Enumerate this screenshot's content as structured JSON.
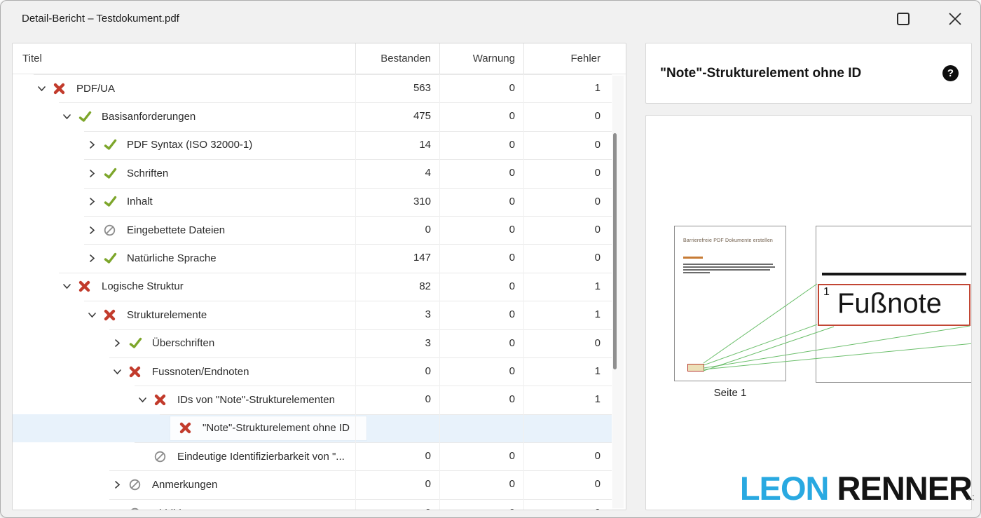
{
  "window": {
    "title": "Detail-Bericht – Testdokument.pdf",
    "controls": {
      "maximize": "maximize",
      "close": "close"
    }
  },
  "table": {
    "headers": {
      "titel": "Titel",
      "bestanden": "Bestanden",
      "warnung": "Warnung",
      "fehler": "Fehler"
    },
    "rows": [
      {
        "level": 1,
        "expander": "expanded",
        "status": "error",
        "title": "PDF/UA",
        "bestanden": "563",
        "warnung": "0",
        "fehler": "1",
        "selected": false
      },
      {
        "level": 2,
        "expander": "expanded",
        "status": "pass",
        "title": "Basisanforderungen",
        "bestanden": "475",
        "warnung": "0",
        "fehler": "0",
        "selected": false
      },
      {
        "level": 3,
        "expander": "collapsed",
        "status": "pass",
        "title": "PDF Syntax (ISO 32000-1)",
        "bestanden": "14",
        "warnung": "0",
        "fehler": "0",
        "selected": false
      },
      {
        "level": 3,
        "expander": "collapsed",
        "status": "pass",
        "title": "Schriften",
        "bestanden": "4",
        "warnung": "0",
        "fehler": "0",
        "selected": false
      },
      {
        "level": 3,
        "expander": "collapsed",
        "status": "pass",
        "title": "Inhalt",
        "bestanden": "310",
        "warnung": "0",
        "fehler": "0",
        "selected": false
      },
      {
        "level": 3,
        "expander": "collapsed",
        "status": "na",
        "title": "Eingebettete Dateien",
        "bestanden": "0",
        "warnung": "0",
        "fehler": "0",
        "selected": false
      },
      {
        "level": 3,
        "expander": "collapsed",
        "status": "pass",
        "title": "Natürliche Sprache",
        "bestanden": "147",
        "warnung": "0",
        "fehler": "0",
        "selected": false
      },
      {
        "level": 2,
        "expander": "expanded",
        "status": "error",
        "title": "Logische Struktur",
        "bestanden": "82",
        "warnung": "0",
        "fehler": "1",
        "selected": false
      },
      {
        "level": 3,
        "expander": "expanded",
        "status": "error",
        "title": "Strukturelemente",
        "bestanden": "3",
        "warnung": "0",
        "fehler": "1",
        "selected": false
      },
      {
        "level": 4,
        "expander": "collapsed",
        "status": "pass",
        "title": "Überschriften",
        "bestanden": "3",
        "warnung": "0",
        "fehler": "0",
        "selected": false
      },
      {
        "level": 4,
        "expander": "expanded",
        "status": "error",
        "title": "Fussnoten/Endnoten",
        "bestanden": "0",
        "warnung": "0",
        "fehler": "1",
        "selected": false
      },
      {
        "level": 5,
        "expander": "expanded",
        "status": "error",
        "title": "IDs von \"Note\"-Strukturelementen",
        "bestanden": "0",
        "warnung": "0",
        "fehler": "1",
        "selected": false
      },
      {
        "level": 6,
        "expander": "none",
        "status": "error",
        "title": "\"Note\"-Strukturelement ohne ID",
        "bestanden": "",
        "warnung": "",
        "fehler": "",
        "selected": true
      },
      {
        "level": 5,
        "expander": "none",
        "status": "na",
        "title": "Eindeutige Identifizierbarkeit von \"...",
        "bestanden": "0",
        "warnung": "0",
        "fehler": "0",
        "selected": false
      },
      {
        "level": 4,
        "expander": "collapsed",
        "status": "na",
        "title": "Anmerkungen",
        "bestanden": "0",
        "warnung": "0",
        "fehler": "0",
        "selected": false
      },
      {
        "level": 4,
        "expander": "collapsed",
        "status": "na",
        "title": "Abbildungen",
        "bestanden": "0",
        "warnung": "0",
        "fehler": "0",
        "selected": false
      }
    ]
  },
  "detail": {
    "title": "\"Note\"-Strukturelement ohne ID",
    "help_label": "?"
  },
  "preview": {
    "page_heading": "Barrierefreie PDF Dokumente erstellen",
    "page_caption": "Seite 1",
    "footnote_sup": "1",
    "footnote_text": "Fußnote"
  },
  "branding": {
    "first": "LEON",
    "last": " RENNER",
    "accent_color": "#29a9e1",
    "dark_color": "#141414"
  },
  "colors": {
    "error": "#c23b2c",
    "pass": "#7da62b",
    "not_applicable": "#8d8d8d",
    "selection": "#e8f2fb",
    "callout_line": "#6cbf6c"
  }
}
